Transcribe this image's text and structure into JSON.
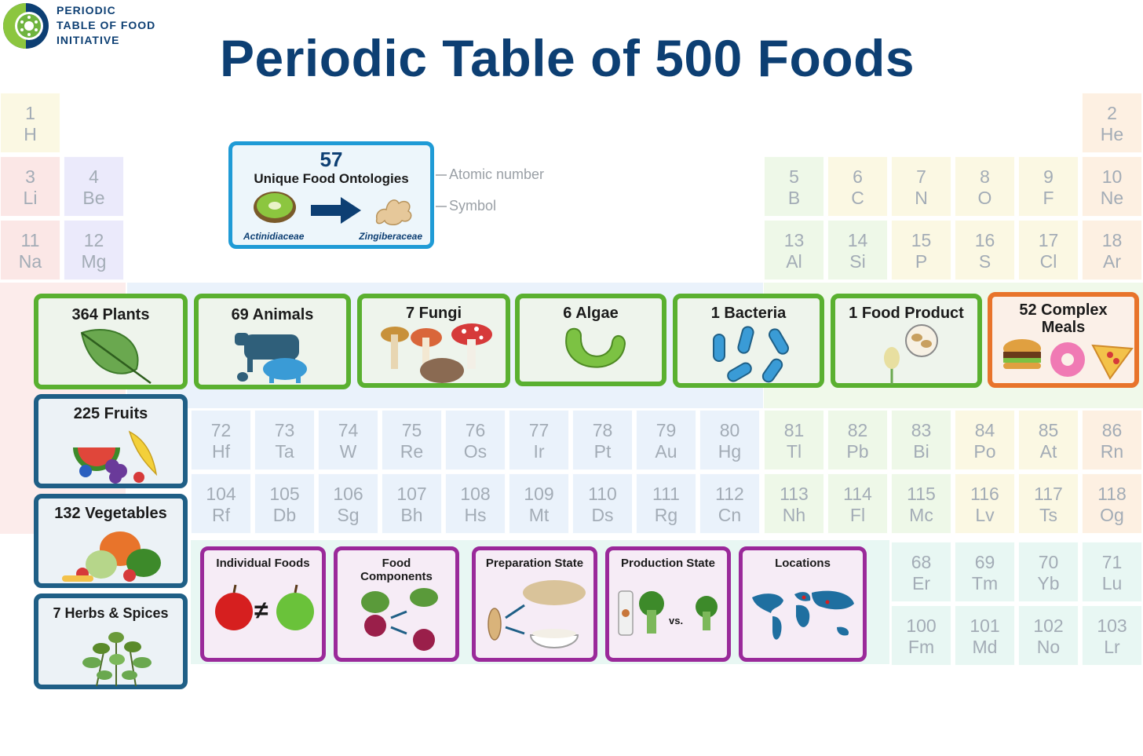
{
  "logo": {
    "line1": "PERIODIC",
    "line2": "TABLE OF FOOD",
    "line3": "INITIATIVE"
  },
  "title": "Periodic Table of 500 Foods",
  "legend": {
    "number": "57",
    "title": "Unique Food Ontologies",
    "left_label": "Actinidiaceae",
    "right_label": "Zingiberaceae",
    "annotation_number": "Atomic number",
    "annotation_symbol": "Symbol"
  },
  "elements": [
    {
      "n": "1",
      "s": "H",
      "c": "#fbf8e3"
    },
    {
      "n": "2",
      "s": "He",
      "c": "#fdf0e2"
    },
    {
      "n": "3",
      "s": "Li",
      "c": "#fbe7e6"
    },
    {
      "n": "4",
      "s": "Be",
      "c": "#ebeafb"
    },
    {
      "n": "5",
      "s": "B",
      "c": "#eef8e8"
    },
    {
      "n": "6",
      "s": "C",
      "c": "#fbf8e3"
    },
    {
      "n": "7",
      "s": "N",
      "c": "#fbf8e3"
    },
    {
      "n": "8",
      "s": "O",
      "c": "#fbf8e3"
    },
    {
      "n": "9",
      "s": "F",
      "c": "#fbf8e3"
    },
    {
      "n": "10",
      "s": "Ne",
      "c": "#fdf0e2"
    },
    {
      "n": "11",
      "s": "Na",
      "c": "#fbe7e6"
    },
    {
      "n": "12",
      "s": "Mg",
      "c": "#ebeafb"
    },
    {
      "n": "13",
      "s": "Al",
      "c": "#eef8e8"
    },
    {
      "n": "14",
      "s": "Si",
      "c": "#eef8e8"
    },
    {
      "n": "15",
      "s": "P",
      "c": "#fbf8e3"
    },
    {
      "n": "16",
      "s": "S",
      "c": "#fbf8e3"
    },
    {
      "n": "17",
      "s": "Cl",
      "c": "#fbf8e3"
    },
    {
      "n": "18",
      "s": "Ar",
      "c": "#fdf0e2"
    },
    {
      "n": "72",
      "s": "Hf",
      "c": "#eaf2fb"
    },
    {
      "n": "73",
      "s": "Ta",
      "c": "#eaf2fb"
    },
    {
      "n": "74",
      "s": "W",
      "c": "#eaf2fb"
    },
    {
      "n": "75",
      "s": "Re",
      "c": "#eaf2fb"
    },
    {
      "n": "76",
      "s": "Os",
      "c": "#eaf2fb"
    },
    {
      "n": "77",
      "s": "Ir",
      "c": "#eaf2fb"
    },
    {
      "n": "78",
      "s": "Pt",
      "c": "#eaf2fb"
    },
    {
      "n": "79",
      "s": "Au",
      "c": "#eaf2fb"
    },
    {
      "n": "80",
      "s": "Hg",
      "c": "#eaf2fb"
    },
    {
      "n": "81",
      "s": "Tl",
      "c": "#eef8e8"
    },
    {
      "n": "82",
      "s": "Pb",
      "c": "#eef8e8"
    },
    {
      "n": "83",
      "s": "Bi",
      "c": "#eef8e8"
    },
    {
      "n": "84",
      "s": "Po",
      "c": "#fbf8e3"
    },
    {
      "n": "85",
      "s": "At",
      "c": "#fbf8e3"
    },
    {
      "n": "86",
      "s": "Rn",
      "c": "#fdf0e2"
    },
    {
      "n": "104",
      "s": "Rf",
      "c": "#eaf2fb"
    },
    {
      "n": "105",
      "s": "Db",
      "c": "#eaf2fb"
    },
    {
      "n": "106",
      "s": "Sg",
      "c": "#eaf2fb"
    },
    {
      "n": "107",
      "s": "Bh",
      "c": "#eaf2fb"
    },
    {
      "n": "108",
      "s": "Hs",
      "c": "#eaf2fb"
    },
    {
      "n": "109",
      "s": "Mt",
      "c": "#eaf2fb"
    },
    {
      "n": "110",
      "s": "Ds",
      "c": "#eaf2fb"
    },
    {
      "n": "111",
      "s": "Rg",
      "c": "#eaf2fb"
    },
    {
      "n": "112",
      "s": "Cn",
      "c": "#eaf2fb"
    },
    {
      "n": "113",
      "s": "Nh",
      "c": "#eef8e8"
    },
    {
      "n": "114",
      "s": "Fl",
      "c": "#eef8e8"
    },
    {
      "n": "115",
      "s": "Mc",
      "c": "#eef8e8"
    },
    {
      "n": "116",
      "s": "Lv",
      "c": "#fbf8e3"
    },
    {
      "n": "117",
      "s": "Ts",
      "c": "#fbf8e3"
    },
    {
      "n": "118",
      "s": "Og",
      "c": "#fdf0e2"
    },
    {
      "n": "68",
      "s": "Er",
      "c": "#e8f7f3"
    },
    {
      "n": "69",
      "s": "Tm",
      "c": "#e8f7f3"
    },
    {
      "n": "70",
      "s": "Yb",
      "c": "#e8f7f3"
    },
    {
      "n": "71",
      "s": "Lu",
      "c": "#e8f7f3"
    },
    {
      "n": "100",
      "s": "Fm",
      "c": "#e8f7f3"
    },
    {
      "n": "101",
      "s": "Md",
      "c": "#e8f7f3"
    },
    {
      "n": "102",
      "s": "No",
      "c": "#e8f7f3"
    },
    {
      "n": "103",
      "s": "Lr",
      "c": "#e8f7f3"
    }
  ],
  "categories": [
    {
      "label": "364 Plants"
    },
    {
      "label": "69 Animals"
    },
    {
      "label": "7 Fungi"
    },
    {
      "label": "6 Algae"
    },
    {
      "label": "1 Bacteria"
    },
    {
      "label": "1 Food Product"
    },
    {
      "label": "52 Complex Meals"
    }
  ],
  "plant_groups": [
    {
      "label": "225 Fruits"
    },
    {
      "label": "132 Vegetables"
    },
    {
      "label": "7 Herbs & Spices"
    }
  ],
  "features": [
    {
      "label": "Individual Foods"
    },
    {
      "label": "Food Components"
    },
    {
      "label": "Preparation State"
    },
    {
      "label": "Production State"
    },
    {
      "label": "Locations"
    }
  ],
  "feature_text": {
    "not_equal": "≠",
    "versus": "vs."
  },
  "colors": {
    "title": "#0d3f73",
    "kingdom_border": "#5ab030",
    "plant_border": "#1f5f86",
    "meal_border": "#e8742b",
    "feature_border": "#9a2a9a",
    "legend_border": "#1f9bd6"
  }
}
